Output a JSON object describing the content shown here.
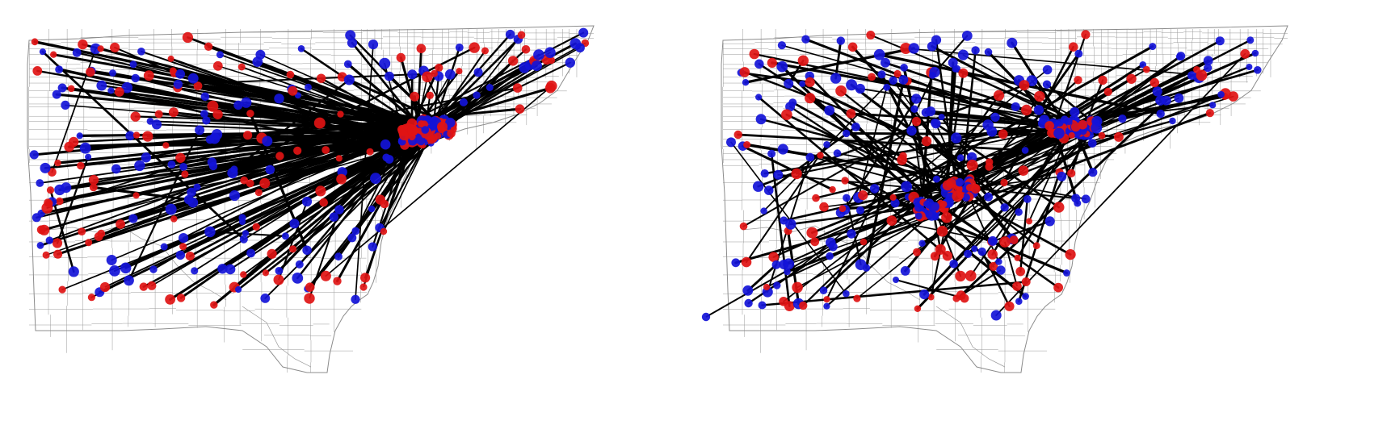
{
  "figure": {
    "panels": [
      {
        "id": "left",
        "description_free": true
      },
      {
        "id": "right",
        "description_free": true
      }
    ]
  },
  "style": {
    "background": "#ffffff",
    "map_outline": "#8c8c8c",
    "tract_line": "#9a9a9a",
    "flow_line": "#000000",
    "origin_color": "#e01414",
    "destination_color": "#1414d8"
  },
  "legend": {
    "origin_color_name": "red",
    "destination_color_name": "blue"
  }
}
